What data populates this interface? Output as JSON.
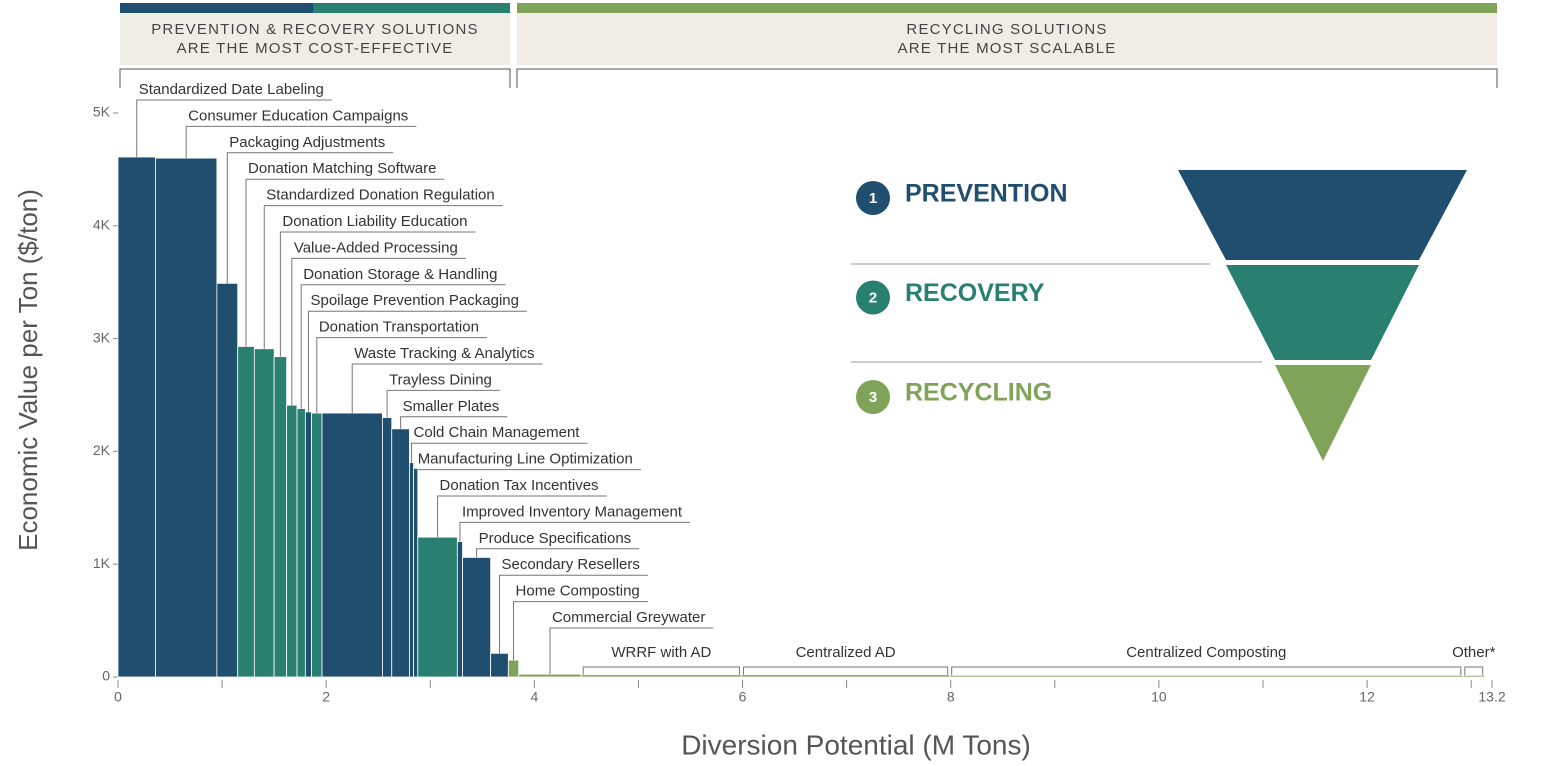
{
  "chart_data": {
    "type": "variwide",
    "header": [
      {
        "lines": [
          "PREVENTION & RECOVERY SOLUTIONS",
          "ARE THE MOST COST-EFFECTIVE"
        ]
      },
      {
        "lines": [
          "RECYCLING SOLUTIONS",
          "ARE THE MOST SCALABLE"
        ]
      }
    ],
    "legend": [
      {
        "number": "1",
        "name": "PREVENTION",
        "color": "#1f4e6e"
      },
      {
        "number": "2",
        "name": "RECOVERY",
        "color": "#2a8070"
      },
      {
        "number": "3",
        "name": "RECYCLING",
        "color": "#80a35a"
      }
    ],
    "y_label": "Economic Value per Ton ($/ton)",
    "x_label": "Diversion Potential (M Tons)",
    "categories": [
      "Standardized Date Labeling",
      "Consumer Education Campaigns",
      "Packaging Adjustments",
      "Donation Matching Software",
      "Standardized Donation Regulation",
      "Donation Liability Education",
      "Value-Added Processing",
      "Donation Storage & Handling",
      "Spoilage Prevention Packaging",
      "Donation Transportation",
      "Waste Tracking & Analytics",
      "Trayless Dining",
      "Smaller Plates",
      "Cold Chain Management",
      "Manufacturing Line Optimization",
      "Donation Tax Incentives",
      "Improved Inventory Management",
      "Produce Specifications",
      "Secondary Resellers",
      "Home Composting",
      "Commercial Greywater",
      "WRRF with AD",
      "Centralized AD",
      "Centralized Composting",
      "Other*"
    ],
    "values": [
      4610,
      4600,
      3490,
      2930,
      2910,
      2840,
      2410,
      2380,
      2350,
      2340,
      2340,
      2300,
      2200,
      1900,
      1850,
      1240,
      1200,
      1060,
      210,
      150,
      25,
      20,
      20,
      15,
      15
    ],
    "widths": [
      0.36,
      0.59,
      0.2,
      0.16,
      0.19,
      0.12,
      0.1,
      0.08,
      0.06,
      0.1,
      0.58,
      0.09,
      0.17,
      0.04,
      0.04,
      0.38,
      0.05,
      0.27,
      0.17,
      0.1,
      0.6,
      1.54,
      2.0,
      4.93,
      0.21
    ],
    "colors": [
      "#1f4e6e",
      "#1f4e6e",
      "#1f4e6e",
      "#2a8070",
      "#2a8070",
      "#2a8070",
      "#2a8070",
      "#2a8070",
      "#1f4e6e",
      "#2a8070",
      "#1f4e6e",
      "#1f4e6e",
      "#1f4e6e",
      "#1f4e6e",
      "#1f4e6e",
      "#2a8070",
      "#1f4e6e",
      "#1f4e6e",
      "#1f4e6e",
      "#80a35a",
      "#80a35a",
      "#80a35a",
      "#80a35a",
      "#80a35a",
      "#80a35a"
    ],
    "xlim": [
      0,
      13.2
    ],
    "xticks": [
      0,
      2,
      4,
      6,
      8,
      10,
      12,
      13.2
    ],
    "xminor_ticks": [
      1,
      3,
      5,
      7,
      9,
      11,
      13
    ],
    "ylim": [
      0,
      5000
    ],
    "yticks": [
      0,
      {
        "value": 1000,
        "label": "1K"
      },
      {
        "value": 2000,
        "label": "2K"
      },
      {
        "value": 3000,
        "label": "3K"
      },
      {
        "value": 4000,
        "label": "4K"
      },
      {
        "value": 5000,
        "label": "5K"
      }
    ]
  }
}
